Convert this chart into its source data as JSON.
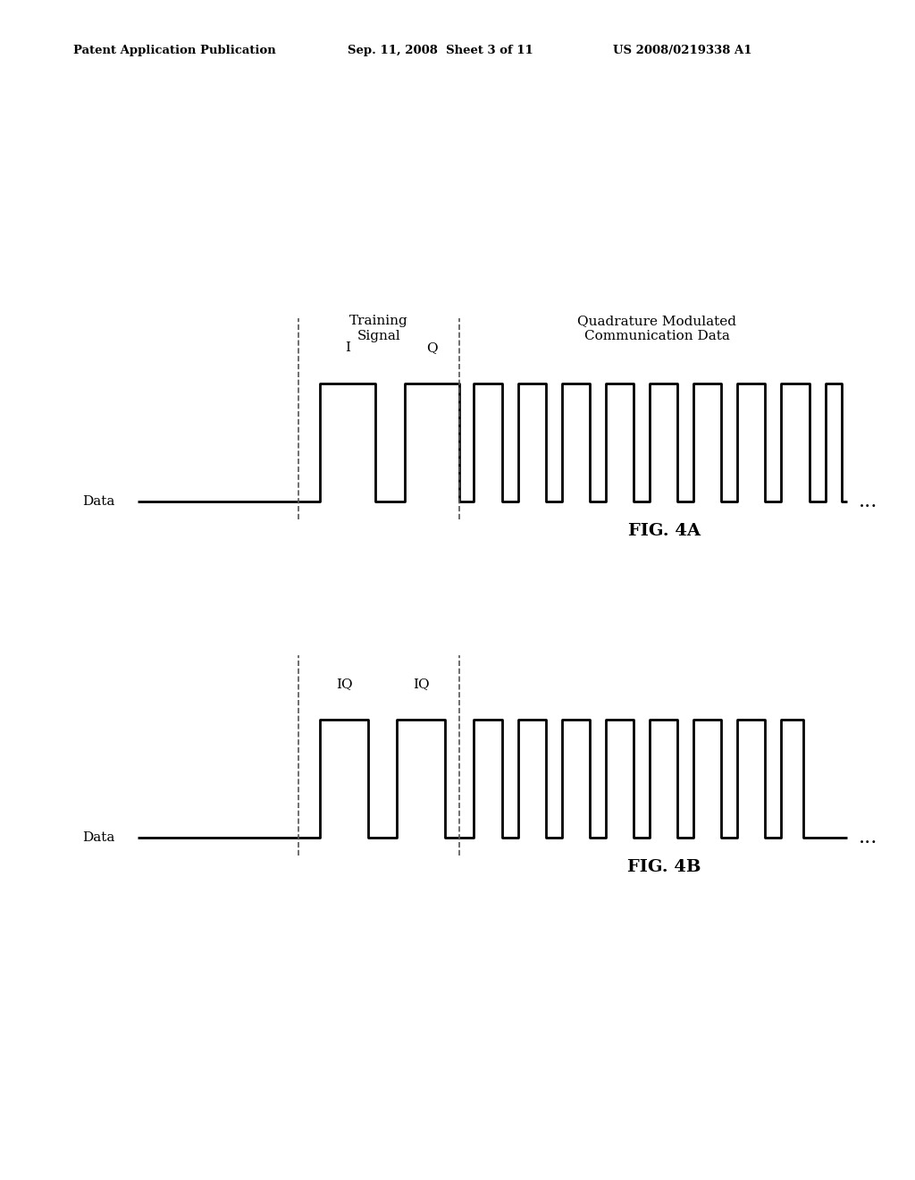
{
  "background_color": "#ffffff",
  "header_left": "Patent Application Publication",
  "header_mid": "Sep. 11, 2008  Sheet 3 of 11",
  "header_right": "US 2008/0219338 A1",
  "fig_label_A": "FIG. 4A",
  "fig_label_B": "FIG. 4B",
  "data_label": "Data",
  "training_label": "Training\nSignal",
  "comm_label": "Quadrature Modulated\nCommunication Data",
  "label_I": "I",
  "label_Q": "Q",
  "label_IQ1": "IQ",
  "label_IQ2": "IQ",
  "line_color": "#000000",
  "dashed_color": "#555555",
  "header_fontsize": 9.5,
  "label_fontsize": 11,
  "fig_label_fontsize": 14
}
